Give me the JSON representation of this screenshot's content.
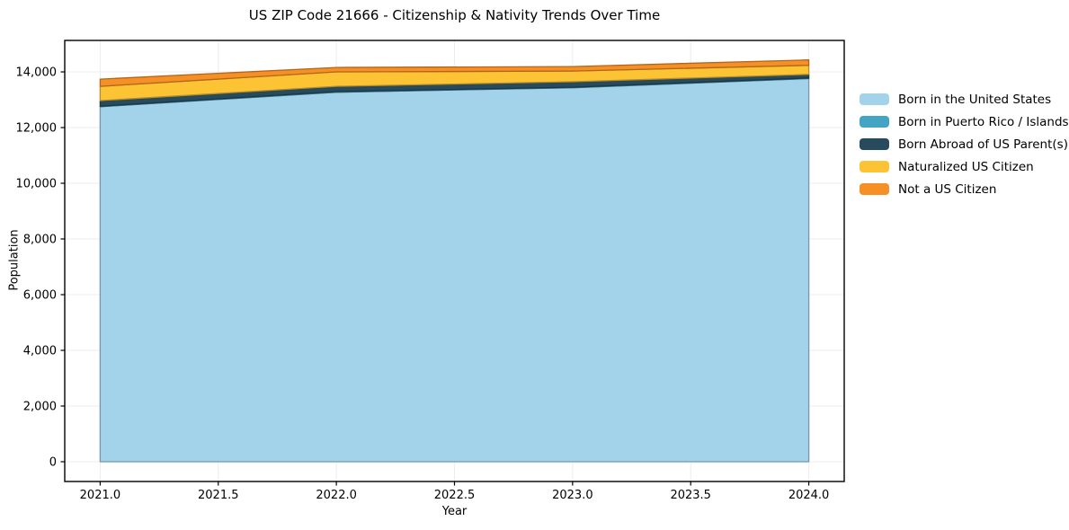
{
  "figure": {
    "title": "US ZIP Code 21666 - Citizenship & Nativity Trends Over Time",
    "xlabel": "Year",
    "ylabel": "Population",
    "background_color": "#ffffff"
  },
  "chart_data": {
    "type": "area",
    "stacked": true,
    "title": "US ZIP Code 21666 - Citizenship & Nativity Trends Over Time",
    "xlabel": "Year",
    "ylabel": "Population",
    "x": [
      2021,
      2022,
      2023,
      2024
    ],
    "series": [
      {
        "name": "Born in the United States",
        "color": "#a3d3ea",
        "values": [
          12750,
          13270,
          13430,
          13760
        ]
      },
      {
        "name": "Born in Puerto Rico / Islands",
        "color": "#44a4c4",
        "values": [
          20,
          20,
          20,
          20
        ]
      },
      {
        "name": "Born Abroad of US Parent(s)",
        "color": "#274a5d",
        "values": [
          200,
          190,
          195,
          130
        ]
      },
      {
        "name": "Naturalized US Citizen",
        "color": "#fcc335",
        "values": [
          510,
          520,
          385,
          325
        ]
      },
      {
        "name": "Not a US Citizen",
        "color": "#f68f25",
        "values": [
          260,
          160,
          160,
          195
        ]
      }
    ],
    "stack_totals": [
      13740,
      14160,
      14190,
      14430
    ],
    "xlim": [
      2020.85,
      2024.15
    ],
    "ylim": [
      -710,
      15130
    ],
    "x_ticks": [
      2021.0,
      2021.5,
      2022.0,
      2022.5,
      2023.0,
      2023.5,
      2024.0
    ],
    "x_tick_labels": [
      "2021.0",
      "2021.5",
      "2022.0",
      "2022.5",
      "2023.0",
      "2023.5",
      "2024.0"
    ],
    "y_ticks": [
      0,
      2000,
      4000,
      6000,
      8000,
      10000,
      12000,
      14000
    ],
    "y_tick_labels": [
      "0",
      "2,000",
      "4,000",
      "6,000",
      "8,000",
      "10,000",
      "12,000",
      "14,000"
    ],
    "grid": true,
    "grid_color": "#ececec",
    "axis_color": "#000000",
    "legend_position": "right-outside"
  }
}
